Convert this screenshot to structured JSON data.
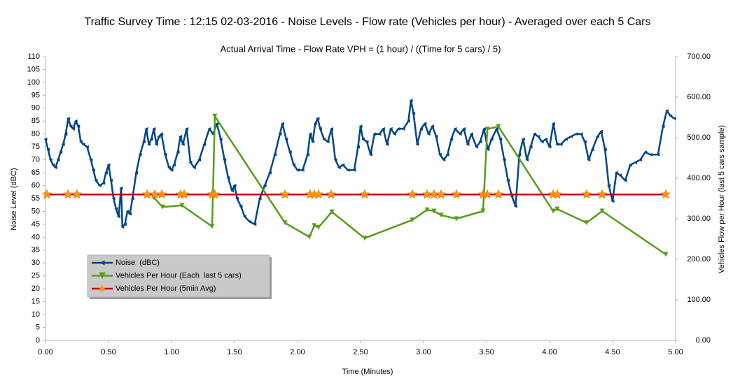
{
  "chart_data": {
    "type": "line",
    "title": "Traffic Survey Time : 12:15 02-03-2016 - Noise Levels - Flow rate (Vehicles per hour) - Averaged over each 5 Cars",
    "subtitle": "Actual Arrival Time - Flow Rate VPH = (1 hour) / ((Time for 5 cars) / 5)",
    "x_label": "Time (Minutes)",
    "y_label": "Noise Level (dBC)",
    "y2_label": "Vehicles Flow per Hour (last 5 cars sample)",
    "xlim": [
      0,
      5
    ],
    "xticks": [
      {
        "value": 0,
        "label": "0.00"
      },
      {
        "value": 0.5,
        "label": "0.50"
      },
      {
        "value": 1,
        "label": "1.00"
      },
      {
        "value": 1.5,
        "label": "1.50"
      },
      {
        "value": 2,
        "label": "2.00"
      },
      {
        "value": 2.5,
        "label": "2.50"
      },
      {
        "value": 3,
        "label": "3.00"
      },
      {
        "value": 3.5,
        "label": "3.50"
      },
      {
        "value": 4,
        "label": "4.00"
      },
      {
        "value": 4.5,
        "label": "4.50"
      },
      {
        "value": 5,
        "label": "5.00"
      }
    ],
    "ylim": [
      0,
      110
    ],
    "yticks": [
      0,
      5,
      10,
      15,
      20,
      25,
      30,
      35,
      40,
      45,
      50,
      55,
      60,
      65,
      70,
      75,
      80,
      85,
      90,
      95,
      100,
      105,
      110
    ],
    "y2lim": [
      0,
      700
    ],
    "y2ticks": [
      {
        "value": 0,
        "label": "0.00"
      },
      {
        "value": 100,
        "label": "100.00"
      },
      {
        "value": 200,
        "label": "200.00"
      },
      {
        "value": 300,
        "label": "300.00"
      },
      {
        "value": 400,
        "label": "400.00"
      },
      {
        "value": 500,
        "label": "500.00"
      },
      {
        "value": 600,
        "label": "600.00"
      },
      {
        "value": 700,
        "label": "700.00"
      }
    ],
    "grid": false,
    "legend": "lower left",
    "series": [
      {
        "name": "Noise  (dBC)",
        "color": "#004586",
        "marker": "triangle-left",
        "x": [
          0,
          0.02,
          0.04,
          0.06,
          0.08,
          0.1,
          0.12,
          0.14,
          0.16,
          0.18,
          0.2,
          0.22,
          0.24,
          0.26,
          0.28,
          0.3,
          0.33,
          0.36,
          0.38,
          0.4,
          0.43,
          0.46,
          0.48,
          0.5,
          0.52,
          0.54,
          0.56,
          0.58,
          0.6,
          0.61,
          0.63,
          0.65,
          0.67,
          0.69,
          0.72,
          0.75,
          0.78,
          0.8,
          0.82,
          0.84,
          0.86,
          0.88,
          0.9,
          0.92,
          0.95,
          0.98,
          1,
          1.02,
          1.05,
          1.07,
          1.09,
          1.12,
          1.15,
          1.18,
          1.22,
          1.26,
          1.3,
          1.33,
          1.36,
          1.39,
          1.42,
          1.45,
          1.48,
          1.5,
          1.52,
          1.55,
          1.58,
          1.62,
          1.66,
          1.7,
          1.74,
          1.78,
          1.82,
          1.86,
          1.88,
          1.91,
          1.94,
          1.97,
          2,
          2.04,
          2.08,
          2.1,
          2.12,
          2.14,
          2.16,
          2.18,
          2.21,
          2.24,
          2.27,
          2.3,
          2.33,
          2.36,
          2.4,
          2.45,
          2.48,
          2.5,
          2.52,
          2.55,
          2.58,
          2.61,
          2.65,
          2.68,
          2.71,
          2.74,
          2.77,
          2.8,
          2.84,
          2.88,
          2.9,
          2.92,
          2.95,
          2.98,
          3.01,
          3.04,
          3.07,
          3.1,
          3.13,
          3.16,
          3.19,
          3.22,
          3.25,
          3.29,
          3.32,
          3.35,
          3.38,
          3.42,
          3.45,
          3.48,
          3.51,
          3.54,
          3.58,
          3.61,
          3.64,
          3.67,
          3.7,
          3.73,
          3.76,
          3.79,
          3.82,
          3.85,
          3.88,
          3.91,
          3.94,
          3.97,
          4,
          4.03,
          4.06,
          4.09,
          4.13,
          4.17,
          4.21,
          4.25,
          4.28,
          4.31,
          4.34,
          4.38,
          4.41,
          4.44,
          4.47,
          4.5,
          4.53,
          4.56,
          4.6,
          4.64,
          4.68,
          4.72,
          4.76,
          4.8,
          4.86,
          4.9,
          4.93,
          4.96,
          4.99
        ],
        "values": [
          78,
          74,
          70,
          68,
          67,
          70,
          73,
          76,
          80,
          86,
          83,
          82,
          85,
          83,
          77,
          76,
          75,
          70,
          66,
          62,
          60,
          61,
          65,
          68,
          62,
          55,
          51,
          48,
          59,
          44,
          45,
          50,
          49,
          55,
          65,
          72,
          77,
          82,
          76,
          78,
          82,
          76,
          79,
          80,
          72,
          67,
          66,
          68,
          73,
          79,
          76,
          82,
          69,
          67,
          70,
          76,
          82,
          80,
          84,
          78,
          70,
          63,
          58,
          60,
          55,
          52,
          48,
          46,
          45,
          55,
          60,
          65,
          72,
          80,
          84,
          78,
          73,
          68,
          66,
          66,
          72,
          80,
          77,
          84,
          86,
          82,
          78,
          77,
          82,
          70,
          67,
          68,
          66,
          66,
          75,
          83,
          78,
          77,
          72,
          80,
          80,
          82,
          76,
          82,
          80,
          82,
          82,
          85,
          93,
          88,
          76,
          82,
          84,
          80,
          83,
          79,
          72,
          70,
          72,
          78,
          82,
          80,
          82,
          76,
          80,
          75,
          77,
          82,
          74,
          78,
          82,
          78,
          70,
          62,
          56,
          52,
          72,
          78,
          70,
          75,
          80,
          79,
          77,
          78,
          75,
          84,
          76,
          76,
          78,
          79,
          80,
          80,
          77,
          70,
          74,
          79,
          81,
          74,
          60,
          54,
          65,
          64,
          62,
          68,
          69,
          70,
          73,
          72,
          72,
          83,
          89,
          87,
          86
        ]
      },
      {
        "name": "Vehicles Per Hour (Each  last 5 cars)",
        "color": "#579d1c",
        "marker": "triangle-down",
        "axis": "y2",
        "x": [
          0.861,
          0.928,
          1.083,
          1.322,
          1.344,
          1.9,
          2.094,
          2.133,
          2.167,
          2.272,
          2.533,
          2.911,
          3.028,
          3.083,
          3.139,
          3.261,
          3.472,
          3.506,
          3.594,
          4.028,
          4.061,
          4.294,
          4.417,
          4.922
        ],
        "values": [
          352,
          329,
          333,
          281,
          553,
          290,
          255,
          283,
          279,
          317,
          252,
          297,
          322,
          319,
          309,
          300,
          319,
          521,
          528,
          319,
          324,
          290,
          319,
          212
        ]
      },
      {
        "name": "Vehicles Per Hour (5min Avg)",
        "color": "#c5000b",
        "marker": "star",
        "marker_color": "#ff950e",
        "axis": "y2",
        "x": [
          0.011,
          0.178,
          0.25,
          0.806,
          0.867,
          0.922,
          1.072,
          1.1,
          1.322,
          1.344,
          1.9,
          2.1,
          2.133,
          2.167,
          2.267,
          2.533,
          2.911,
          3.028,
          3.083,
          3.139,
          3.261,
          3.472,
          3.506,
          3.594,
          4.028,
          4.061,
          4.294,
          4.417,
          4.922
        ],
        "values": [
          360,
          360,
          360,
          360,
          360,
          360,
          360,
          360,
          360,
          360,
          360,
          360,
          360,
          360,
          360,
          360,
          360,
          360,
          360,
          360,
          360,
          360,
          360,
          360,
          360,
          360,
          360,
          360,
          360
        ]
      }
    ]
  }
}
